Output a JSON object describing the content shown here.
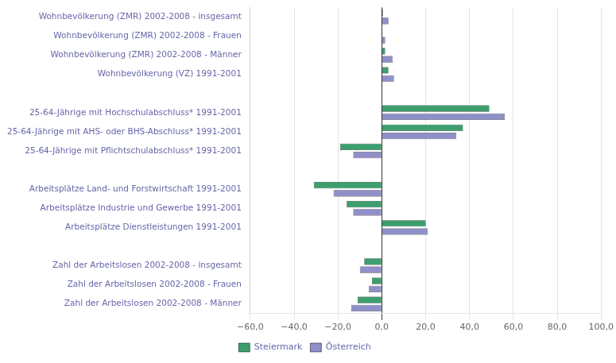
{
  "chart_data": {
    "type": "bar",
    "orientation": "horizontal",
    "categories": [
      "Wohnbevölkerung (ZMR) 2002-2008 - insgesamt",
      "Wohnbevölkerung (ZMR) 2002-2008 - Frauen",
      "Wohnbevölkerung (ZMR) 2002-2008 - Männer",
      "Wohnbevölkerung (VZ) 1991-2001",
      null,
      "25-64-Jährige mit Hochschulabschluss* 1991-2001",
      "25-64-Jährige mit AHS- oder BHS-Abschluss* 1991-2001",
      "25-64-Jährige mit Pflichtschulabschluss* 1991-2001",
      null,
      "Arbeitsplätze Land- und Forstwirtschaft 1991-2001",
      "Arbeitsplätze Industrie und Gewerbe 1991-2001",
      "Arbeitsplätze Dienstleistungen 1991-2001",
      null,
      "Zahl der Arbeitslosen 2002-2008 - insgesamt",
      "Zahl der Arbeitslosen 2002-2008 - Frauen",
      "Zahl der Arbeitslosen 2002-2008 - Männer"
    ],
    "series": [
      {
        "name": "Steiermark",
        "color": "#3d9e6e",
        "values": [
          0.5,
          0.3,
          1.5,
          3.0,
          null,
          49.0,
          37.0,
          -19.0,
          null,
          -31.0,
          -16.0,
          20.0,
          null,
          -8.0,
          -4.5,
          -11.0
        ]
      },
      {
        "name": "Österreich",
        "color": "#9090c8",
        "values": [
          3.0,
          1.5,
          5.0,
          5.5,
          null,
          56.0,
          34.0,
          -13.0,
          null,
          -22.0,
          -13.0,
          21.0,
          null,
          -10.0,
          -6.0,
          -14.0
        ]
      }
    ],
    "xlim": [
      -60,
      100
    ],
    "xticks": [
      {
        "value": -60,
        "label": "−60,0"
      },
      {
        "value": -40,
        "label": "−40,0"
      },
      {
        "value": -20,
        "label": "−20,0"
      },
      {
        "value": 0,
        "label": "0,0"
      },
      {
        "value": 20,
        "label": "20,0"
      },
      {
        "value": 40,
        "label": "40,0"
      },
      {
        "value": 60,
        "label": "60,0"
      },
      {
        "value": 80,
        "label": "80,0"
      },
      {
        "value": 100,
        "label": "100,0"
      }
    ],
    "grid": true,
    "legend": "bottom"
  }
}
